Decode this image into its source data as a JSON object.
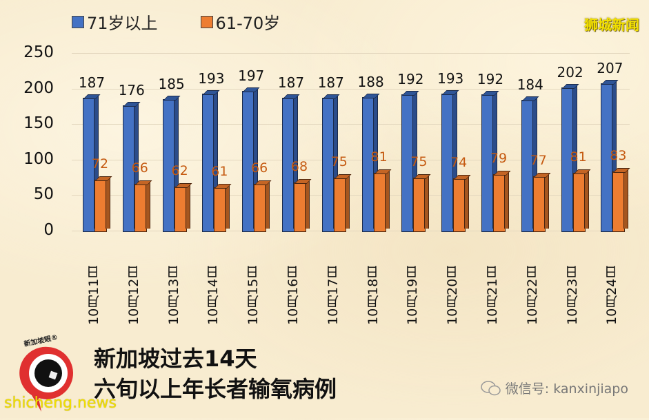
{
  "legend": {
    "series_1": {
      "label": "71岁以上",
      "color": "#4472c4"
    },
    "series_2": {
      "label": "61-70岁",
      "color": "#ed7d31"
    }
  },
  "brand_watermark": "狮城新闻",
  "y_axis": {
    "ticks": [
      "250",
      "200",
      "150",
      "100",
      "50",
      "0"
    ]
  },
  "chart_data": {
    "type": "bar",
    "title": "新加坡过去14天 六旬以上年长者输氧病例",
    "xlabel": "",
    "ylabel": "",
    "ylim": [
      0,
      250
    ],
    "grid": true,
    "legend_position": "top",
    "categories": [
      "10月11日",
      "10月12日",
      "10月13日",
      "10月14日",
      "10月15日",
      "10月16日",
      "10月17日",
      "10月18日",
      "10月19日",
      "10月20日",
      "10月21日",
      "10月22日",
      "10月23日",
      "10月24日"
    ],
    "series": [
      {
        "name": "71岁以上",
        "color": "#4472c4",
        "values": [
          187,
          176,
          185,
          193,
          197,
          187,
          187,
          188,
          192,
          193,
          192,
          184,
          202,
          207
        ]
      },
      {
        "name": "61-70岁",
        "color": "#ed7d31",
        "values": [
          72,
          66,
          62,
          61,
          66,
          68,
          75,
          81,
          75,
          74,
          79,
          77,
          81,
          83
        ]
      }
    ]
  },
  "footer": {
    "title_line1": "新加坡过去14天",
    "title_line2": "六旬以上年长者输氧病例",
    "logo_text": "新加坡眼®",
    "wechat_label": "微信号: kanxinjiapo",
    "site_watermark": "shicheng.news"
  }
}
